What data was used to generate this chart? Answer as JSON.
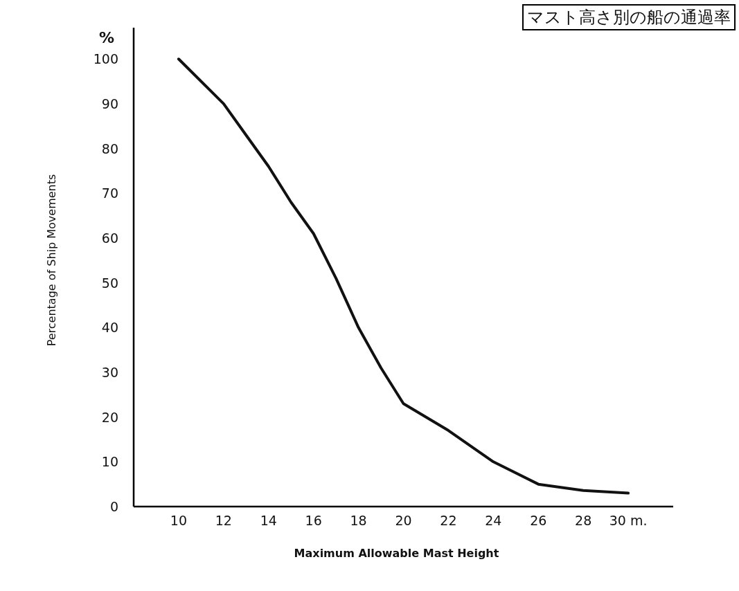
{
  "chart_data": {
    "type": "line",
    "title": "マスト高さ別の船の通過率",
    "xlabel": "Maximum  Allowable  Mast  Height",
    "ylabel": "Percentage of Ship Movements",
    "annotations": [
      "%"
    ],
    "x": [
      10,
      12,
      13,
      14,
      15,
      16,
      17,
      18,
      19,
      20,
      22,
      24,
      26,
      28,
      30
    ],
    "values": [
      100,
      90,
      83,
      76,
      68,
      61,
      51,
      40,
      31,
      23,
      17,
      10,
      5,
      3.6,
      3
    ],
    "color": "#111111",
    "xlim": [
      8,
      32
    ],
    "ylim": [
      0,
      107
    ],
    "xticks": [
      10,
      12,
      14,
      16,
      18,
      20,
      22,
      24,
      26,
      28,
      {
        "value": 30,
        "label": "30 m."
      }
    ],
    "yticks": [
      0,
      10,
      20,
      30,
      40,
      50,
      60,
      70,
      80,
      90,
      100
    ],
    "grid": false
  }
}
